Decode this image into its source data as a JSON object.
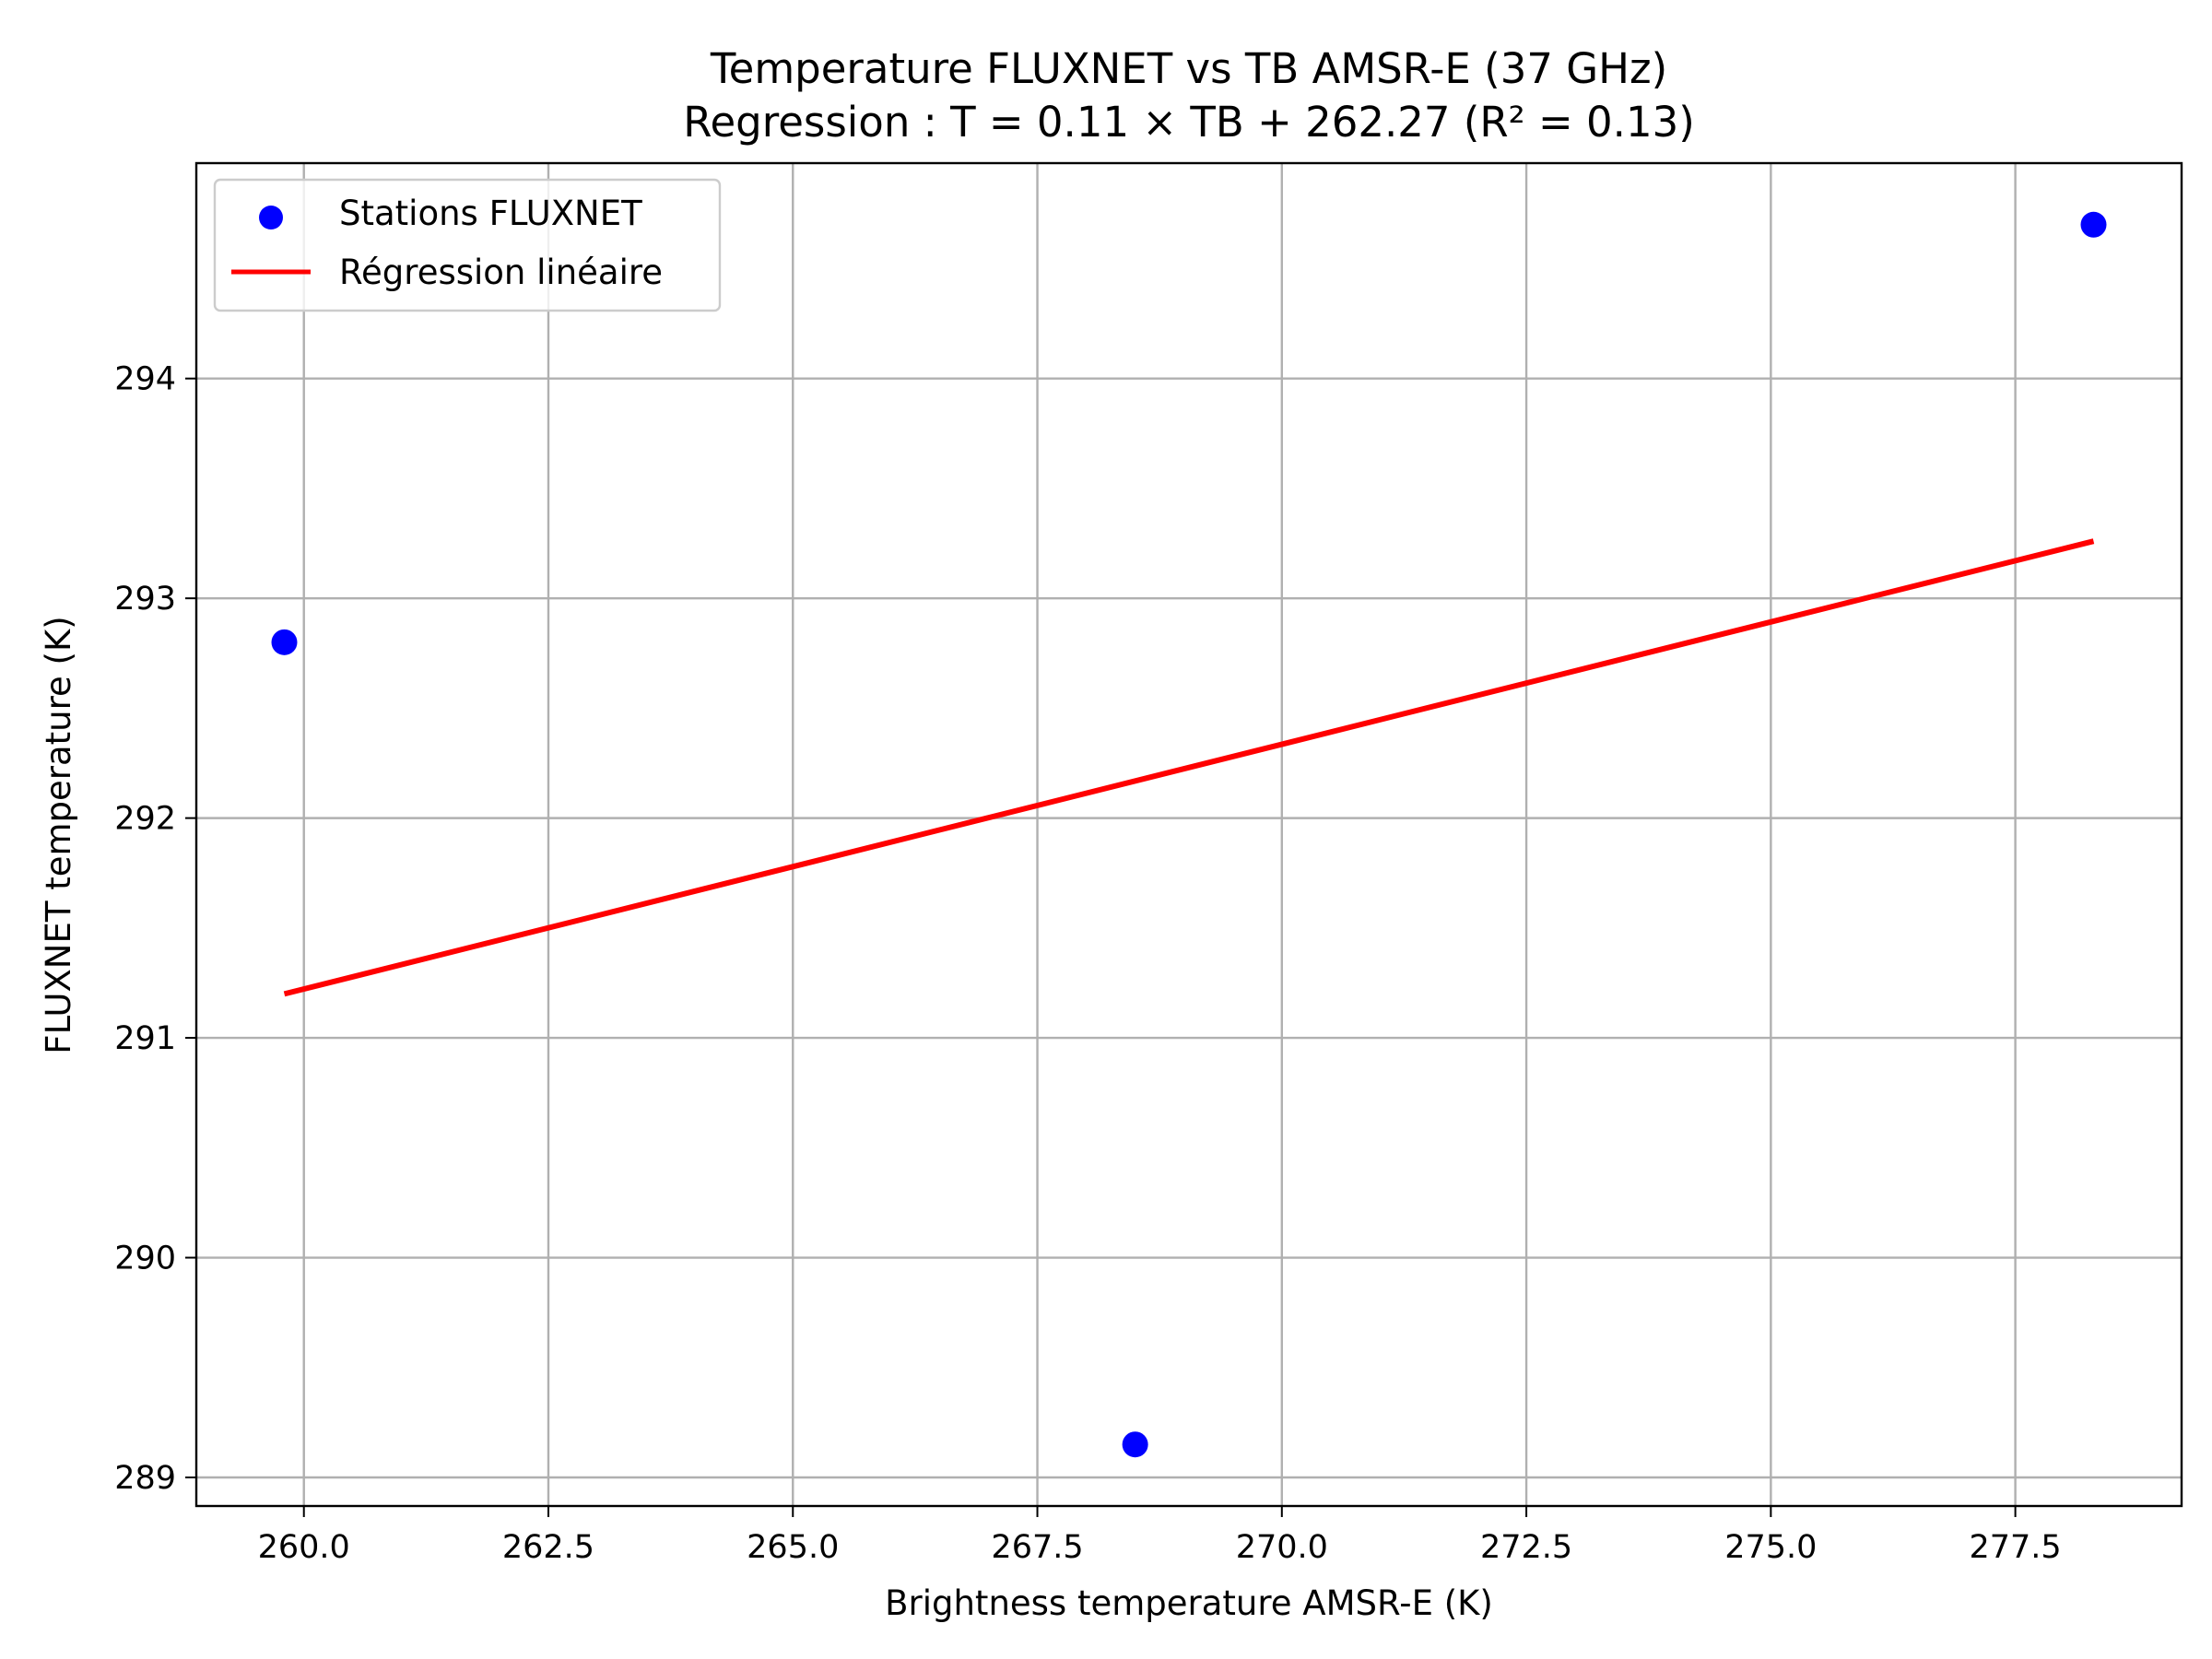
{
  "chart_data": {
    "type": "scatter",
    "title": "Temperature FLUXNET vs TB AMSR-E (37 GHz)",
    "subtitle": "Regression : T = 0.11 × TB + 262.27 (R² = 0.13)",
    "xlabel": "Brightness temperature AMSR-E (K)",
    "ylabel": "FLUXNET temperature (K)",
    "xlim": [
      258.9,
      279.2
    ],
    "ylim": [
      288.87,
      294.98
    ],
    "xticks": [
      260.0,
      262.5,
      265.0,
      267.5,
      270.0,
      272.5,
      275.0,
      277.5
    ],
    "xtick_labels": [
      "260.0",
      "262.5",
      "265.0",
      "267.5",
      "270.0",
      "272.5",
      "275.0",
      "277.5"
    ],
    "yticks": [
      289,
      290,
      291,
      292,
      293,
      294
    ],
    "ytick_labels": [
      "289",
      "290",
      "291",
      "292",
      "293",
      "294"
    ],
    "grid": true,
    "legend_position": "top-left",
    "series": [
      {
        "name": "Stations FLUXNET",
        "kind": "scatter",
        "color": "#0000ff",
        "x": [
          259.8,
          268.5,
          278.3
        ],
        "y": [
          292.8,
          289.15,
          294.7
        ]
      },
      {
        "name": "Régression linéaire",
        "kind": "line",
        "color": "#ff0000",
        "x": [
          259.8,
          278.3
        ],
        "y": [
          291.2,
          293.26
        ]
      }
    ]
  }
}
